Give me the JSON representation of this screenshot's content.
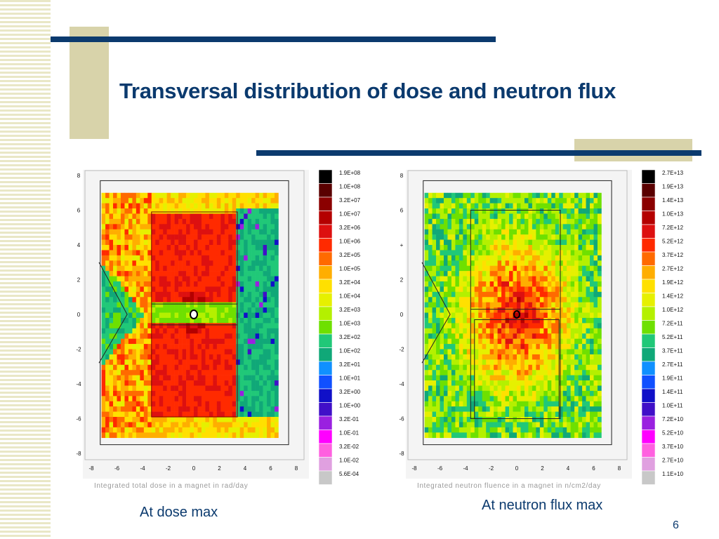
{
  "slide": {
    "title": "Transversal distribution of dose and neutron flux",
    "caption_left": "At dose max",
    "caption_right": "At neutron flux max",
    "page_number": "6"
  },
  "colors": {
    "title": "#0b3a6e",
    "accent_bar": "#0b3a6e",
    "accent_block": "#d8d3aa",
    "stripe": "#e9e7c6"
  },
  "chart_data": [
    {
      "type": "heatmap",
      "title": "",
      "xlabel": "Integrated total dose in a magnet in rad/day",
      "ylabel": "",
      "xlim": [
        -8,
        8
      ],
      "ylim": [
        -8,
        8
      ],
      "x_ticks": [
        "-8",
        "-6",
        "-4",
        "-2",
        "0",
        "2",
        "4",
        "6",
        "8"
      ],
      "y_ticks": [
        "8",
        "6",
        "4",
        "2",
        "0",
        "-2",
        "-4",
        "-6",
        "-8"
      ],
      "colorbar_labels": [
        "1.9E+08",
        "1.0E+08",
        "3.2E+07",
        "1.0E+07",
        "3.2E+06",
        "1.0E+06",
        "3.2E+05",
        "1.0E+05",
        "3.2E+04",
        "1.0E+04",
        "3.2E+03",
        "1.0E+03",
        "3.2E+02",
        "1.0E+02",
        "3.2E+01",
        "1.0E+01",
        "3.2E+00",
        "1.0E+00",
        "3.2E-01",
        "1.0E-01",
        "3.2E-02",
        "1.0E-02",
        "5.6E-04"
      ],
      "colorbar_colors": [
        "#000000",
        "#5a0000",
        "#8b0000",
        "#b40000",
        "#dd1010",
        "#ff2a00",
        "#ff6a00",
        "#ffae00",
        "#ffe000",
        "#e6f000",
        "#b4f000",
        "#6ee000",
        "#20c878",
        "#10a878",
        "#1090ff",
        "#1050ff",
        "#1010c8",
        "#4010c8",
        "#9a20e0",
        "#ff00ff",
        "#ff60e0",
        "#e0a0e0",
        "#c8c8c8"
      ],
      "pattern": "dose"
    },
    {
      "type": "heatmap",
      "title": "",
      "xlabel": "Integrated neutron fluence in a magnet in n/cm2/day",
      "ylabel": "",
      "xlim": [
        -8,
        8
      ],
      "ylim": [
        -8,
        8
      ],
      "x_ticks": [
        "-8",
        "-6",
        "-4",
        "-2",
        "0",
        "2",
        "4",
        "6",
        "8"
      ],
      "y_ticks": [
        "8",
        "6",
        "+",
        "2",
        "0",
        "-2",
        "-4",
        "-6",
        "-8"
      ],
      "colorbar_labels": [
        "2.7E+13",
        "1.9E+13",
        "1.4E+13",
        "1.0E+13",
        "7.2E+12",
        "5.2E+12",
        "3.7E+12",
        "2.7E+12",
        "1.9E+12",
        "1.4E+12",
        "1.0E+12",
        "7.2E+11",
        "5.2E+11",
        "3.7E+11",
        "2.7E+11",
        "1.9E+11",
        "1.4E+11",
        "1.0E+11",
        "7.2E+10",
        "5.2E+10",
        "3.7E+10",
        "2.7E+10",
        "1.1E+10"
      ],
      "colorbar_colors": [
        "#000000",
        "#5a0000",
        "#8b0000",
        "#b40000",
        "#dd1010",
        "#ff2a00",
        "#ff6a00",
        "#ffae00",
        "#ffe000",
        "#e6f000",
        "#b4f000",
        "#6ee000",
        "#20c878",
        "#10a878",
        "#1090ff",
        "#1050ff",
        "#1010c8",
        "#4010c8",
        "#9a20e0",
        "#ff00ff",
        "#ff60e0",
        "#e0a0e0",
        "#c8c8c8"
      ],
      "pattern": "flux"
    }
  ]
}
